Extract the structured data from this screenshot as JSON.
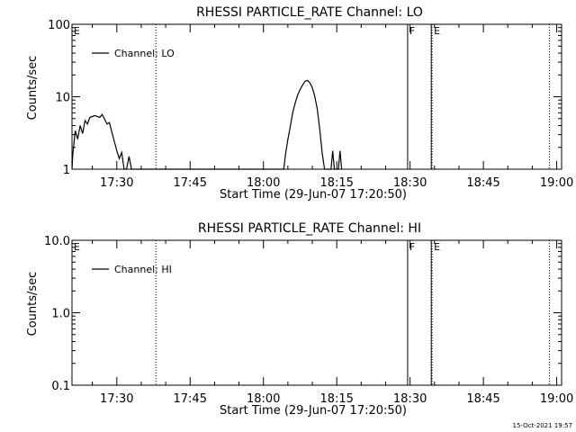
{
  "footer_timestamp": "15-Oct-2021 19:57",
  "chart_data": [
    {
      "type": "line",
      "title": "RHESSI PARTICLE_RATE Channel: LO",
      "xlabel": "Start Time (29-Jun-07 17:20:50)",
      "ylabel": "Counts/sec",
      "y_scale": "log",
      "xlim": [
        "17:20:50",
        "19:01:00"
      ],
      "ylim": [
        1,
        100
      ],
      "x_ticks": [
        "17:30",
        "17:45",
        "18:00",
        "18:15",
        "18:30",
        "18:45",
        "19:00"
      ],
      "y_ticks": [
        "1",
        "10",
        "100"
      ],
      "legend_position": "top-left",
      "series": [
        {
          "name": "Channel: LO",
          "points": [
            [
              "17:20:50",
              1
            ],
            [
              "17:21:00",
              1.6
            ],
            [
              "17:21:30",
              3.4
            ],
            [
              "17:22:00",
              2.6
            ],
            [
              "17:22:30",
              4.0
            ],
            [
              "17:23:00",
              3.1
            ],
            [
              "17:23:30",
              4.7
            ],
            [
              "17:24:00",
              4.2
            ],
            [
              "17:24:30",
              5.2
            ],
            [
              "17:25:30",
              5.5
            ],
            [
              "17:26:30",
              5.2
            ],
            [
              "17:27:00",
              5.7
            ],
            [
              "17:27:30",
              4.9
            ],
            [
              "17:28:00",
              4.2
            ],
            [
              "17:28:30",
              4.4
            ],
            [
              "17:29:00",
              3.2
            ],
            [
              "17:29:30",
              2.4
            ],
            [
              "17:30:00",
              1.8
            ],
            [
              "17:30:30",
              1.4
            ],
            [
              "17:31:00",
              1.7
            ],
            [
              "17:31:30",
              1.0
            ],
            [
              "17:32:00",
              1.0
            ],
            [
              "17:32:30",
              1.5
            ],
            [
              "17:33:00",
              1.0
            ],
            [
              "18:04:10",
              1.0
            ],
            [
              "18:04:30",
              1.6
            ],
            [
              "18:05:00",
              2.6
            ],
            [
              "18:05:30",
              3.9
            ],
            [
              "18:06:00",
              6.1
            ],
            [
              "18:06:30",
              8.2
            ],
            [
              "18:07:00",
              10.5
            ],
            [
              "18:07:30",
              12.6
            ],
            [
              "18:08:00",
              14.5
            ],
            [
              "18:08:30",
              16.4
            ],
            [
              "18:09:00",
              16.8
            ],
            [
              "18:09:30",
              15.6
            ],
            [
              "18:10:00",
              13.3
            ],
            [
              "18:10:30",
              10.2
            ],
            [
              "18:11:00",
              6.8
            ],
            [
              "18:11:30",
              3.6
            ],
            [
              "18:12:00",
              1.7
            ],
            [
              "18:12:30",
              1.0
            ],
            [
              "18:13:50",
              1.0
            ],
            [
              "18:14:10",
              1.8
            ],
            [
              "18:14:30",
              1.0
            ],
            [
              "18:15:20",
              1.0
            ],
            [
              "18:15:40",
              1.8
            ],
            [
              "18:16:00",
              1.0
            ]
          ]
        }
      ],
      "markers": [
        {
          "time": "17:38:00",
          "style": "dotted",
          "label": ""
        },
        {
          "time": "18:29:30",
          "style": "solid",
          "label": "F"
        },
        {
          "time": "18:34:20",
          "style": "solid",
          "label": ""
        },
        {
          "time": "18:34:30",
          "style": "dotted",
          "label": "E"
        },
        {
          "time": "18:58:30",
          "style": "dotted",
          "label": ""
        }
      ],
      "corner_label": "E"
    },
    {
      "type": "line",
      "title": "RHESSI PARTICLE_RATE Channel: HI",
      "xlabel": "Start Time (29-Jun-07 17:20:50)",
      "ylabel": "Counts/sec",
      "y_scale": "log",
      "xlim": [
        "17:20:50",
        "19:01:00"
      ],
      "ylim": [
        0.1,
        10
      ],
      "x_ticks": [
        "17:30",
        "17:45",
        "18:00",
        "18:15",
        "18:30",
        "18:45",
        "19:00"
      ],
      "y_ticks": [
        "0.1",
        "1.0",
        "10.0"
      ],
      "legend_position": "top-left",
      "series": [
        {
          "name": "Channel: HI",
          "points": []
        }
      ],
      "markers": [
        {
          "time": "17:38:00",
          "style": "dotted",
          "label": ""
        },
        {
          "time": "18:29:30",
          "style": "solid",
          "label": "F"
        },
        {
          "time": "18:34:20",
          "style": "solid",
          "label": ""
        },
        {
          "time": "18:34:30",
          "style": "dotted",
          "label": "E"
        },
        {
          "time": "18:58:30",
          "style": "dotted",
          "label": ""
        }
      ],
      "corner_label": "E"
    }
  ]
}
